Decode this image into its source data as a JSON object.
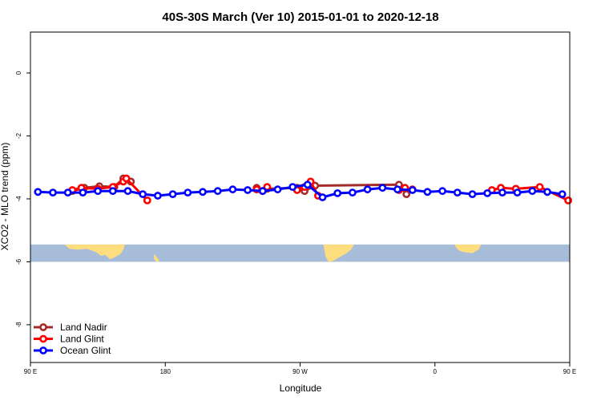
{
  "chart_data": {
    "type": "line",
    "title": "40S-30S March (Ver 10)   2015-01-01 to 2020-12-18",
    "xlabel": "Longitude",
    "ylabel": "XCO2 - MLO trend (ppm)",
    "xlim": [
      90,
      450
    ],
    "ylim": [
      -9.2,
      1.3
    ],
    "x_ticks": [
      {
        "value": 90,
        "label": "90 E"
      },
      {
        "value": 180,
        "label": "180"
      },
      {
        "value": 270,
        "label": "90 W"
      },
      {
        "value": 360,
        "label": "0"
      },
      {
        "value": 450,
        "label": "90 E"
      },
      {
        "value": 540,
        "label": "180"
      }
    ],
    "y_ticks": [
      {
        "value": 0,
        "label": "0"
      },
      {
        "value": -2,
        "label": "-2"
      },
      {
        "value": -4,
        "label": "-4"
      },
      {
        "value": -6,
        "label": "-6"
      },
      {
        "value": -8,
        "label": "-8"
      }
    ],
    "legend_position": "bottom-left",
    "map_strip": {
      "ymin": -6,
      "ymax": -5.45,
      "ocean_color": "#a7bcd9",
      "land_color": "#fedd7f"
    },
    "series": [
      {
        "name": "Land Nadir",
        "color": "#a52a2a",
        "x": [
          118,
          126,
          136,
          146,
          152,
          157,
          241,
          245,
          248,
          268,
          273,
          280,
          336,
          341
        ],
        "y": [
          -3.75,
          -3.65,
          -3.6,
          -3.62,
          -3.35,
          -3.45,
          -3.65,
          -3.75,
          -3.68,
          -3.65,
          -3.75,
          -3.58,
          -3.55,
          -3.85
        ],
        "segments": [
          [
            0,
            6
          ],
          [
            6,
            10
          ],
          [
            10,
            14
          ]
        ]
      },
      {
        "name": "Land Glint",
        "color": "#ff0000",
        "x": [
          118,
          124,
          135,
          145,
          152,
          154,
          168,
          241,
          245,
          248,
          268,
          273,
          277,
          282,
          336,
          340,
          345,
          398,
          404,
          414,
          430,
          449
        ],
        "y": [
          -3.72,
          -3.65,
          -3.68,
          -3.62,
          -3.45,
          -3.35,
          -4.05,
          -3.7,
          -3.75,
          -3.62,
          -3.72,
          -3.62,
          -3.45,
          -3.9,
          -3.72,
          -3.65,
          -3.7,
          -3.72,
          -3.65,
          -3.68,
          -3.62,
          -4.05
        ],
        "segments": [
          [
            0,
            7
          ],
          [
            7,
            10
          ],
          [
            10,
            14
          ],
          [
            14,
            17
          ],
          [
            17,
            22
          ]
        ]
      },
      {
        "name": "Ocean Glint",
        "color": "#0000ff",
        "x": [
          95,
          105,
          115,
          125,
          135,
          145,
          155,
          165,
          175,
          185,
          195,
          205,
          215,
          225,
          235,
          245,
          255,
          265,
          275,
          285,
          295,
          305,
          315,
          325,
          335,
          345,
          355,
          365,
          375,
          385,
          395,
          405,
          415,
          425,
          435,
          445
        ],
        "y": [
          -3.78,
          -3.8,
          -3.8,
          -3.8,
          -3.75,
          -3.75,
          -3.75,
          -3.85,
          -3.9,
          -3.85,
          -3.8,
          -3.78,
          -3.75,
          -3.7,
          -3.72,
          -3.75,
          -3.7,
          -3.62,
          -3.55,
          -3.95,
          -3.82,
          -3.8,
          -3.7,
          -3.65,
          -3.7,
          -3.72,
          -3.78,
          -3.75,
          -3.8,
          -3.85,
          -3.82,
          -3.8,
          -3.8,
          -3.75,
          -3.78,
          -3.85
        ],
        "segments": [
          [
            0,
            36
          ]
        ]
      }
    ]
  }
}
